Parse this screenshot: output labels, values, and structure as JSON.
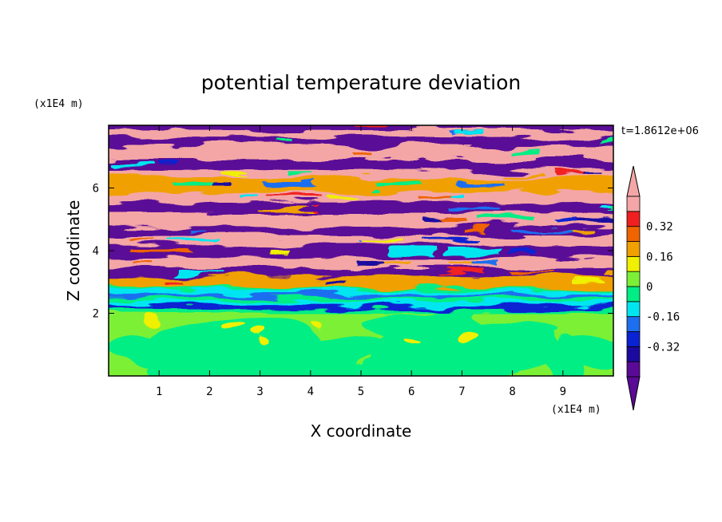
{
  "chart_data": {
    "type": "heatmap",
    "title": "potential temperature deviation",
    "xlabel": "X coordinate",
    "ylabel": "Z coordinate",
    "x_unit": "(x1E4 m)",
    "z_unit": "(x1E4 m)",
    "time_label": "t=1.8612e+06",
    "xlim": [
      0,
      10
    ],
    "ylim": [
      0,
      8
    ],
    "x_ticks": [
      "1",
      "2",
      "3",
      "4",
      "5",
      "6",
      "7",
      "8",
      "9"
    ],
    "x_tick_values": [
      1,
      2,
      3,
      4,
      5,
      6,
      7,
      8,
      9
    ],
    "y_ticks": [
      "2",
      "4",
      "6"
    ],
    "y_tick_values": [
      2,
      4,
      6
    ],
    "colorbar": {
      "levels": [
        -0.48,
        -0.4,
        -0.32,
        -0.24,
        -0.16,
        -0.08,
        0,
        0.08,
        0.16,
        0.24,
        0.32,
        0.4,
        0.48
      ],
      "colors": [
        "#5a0a96",
        "#1c0aa0",
        "#0a22d2",
        "#1e6ef0",
        "#00e6f0",
        "#00ee84",
        "#7cf036",
        "#f0f000",
        "#f0a000",
        "#f06400",
        "#f02020",
        "#f4a6a6"
      ],
      "labels": [
        "-0.32",
        "-0.16",
        "0",
        "0.16",
        "0.32"
      ],
      "label_values": [
        -0.32,
        -0.16,
        0,
        0.16,
        0.32
      ],
      "under_color": "#5a0a96",
      "over_color": "#f4a6a6"
    },
    "field_description": {
      "lower_layer_z": [
        0,
        2.0
      ],
      "lower_layer_values_range": [
        -0.08,
        0.08
      ],
      "transition_layer_z": [
        2.0,
        3.0
      ],
      "upper_layer_z": [
        3.0,
        8.0
      ],
      "upper_layer_values_range": [
        -0.48,
        0.48
      ]
    }
  }
}
